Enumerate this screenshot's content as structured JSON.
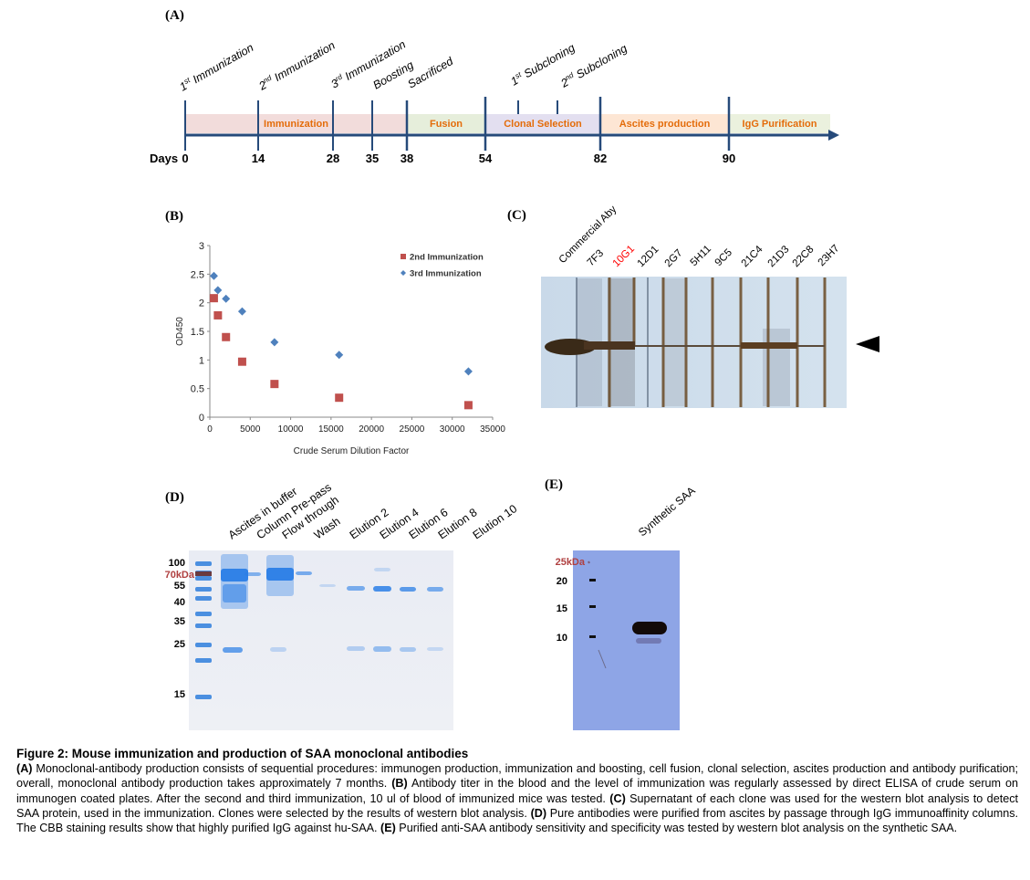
{
  "panels": {
    "a": "(A)",
    "b": "(B)",
    "c": "(C)",
    "d": "(D)",
    "e": "(E)"
  },
  "timeline": {
    "days_label": "Days",
    "days": [
      "0",
      "14",
      "28",
      "35",
      "38",
      "54",
      "82",
      "90"
    ],
    "events": [
      {
        "num": "1",
        "sup": "st",
        "text": " Immunization"
      },
      {
        "num": "2",
        "sup": "nd",
        "text": " Immunization"
      },
      {
        "num": "3",
        "sup": "rd",
        "text": " Immunization"
      },
      {
        "num": "",
        "sup": "",
        "text": "Boosting"
      },
      {
        "num": "",
        "sup": "",
        "text": "Sacrificed"
      },
      {
        "num": "1",
        "sup": "st",
        "text": " Subcloning"
      },
      {
        "num": "2",
        "sup": "nd",
        "text": " Subcloning"
      }
    ],
    "phases": [
      "Immunization",
      "Fusion",
      "Clonal Selection",
      "Ascites production",
      "IgG Purification"
    ],
    "phase_colors": [
      "#f2dcdb",
      "#e6eedb",
      "#e3dff0",
      "#fde6d4",
      "#ebf1de"
    ],
    "phase_text_color": "#e46c0a",
    "axis_color": "#264a7a"
  },
  "chart_data": {
    "type": "scatter",
    "xlabel": "Crude Serum Dilution Factor",
    "ylabel": "OD450",
    "xlim": [
      0,
      35000
    ],
    "ylim": [
      0,
      3
    ],
    "xticks": [
      "0",
      "5000",
      "10000",
      "15000",
      "20000",
      "25000",
      "30000",
      "35000"
    ],
    "yticks": [
      "0",
      "0.5",
      "1",
      "1.5",
      "2",
      "2.5",
      "3"
    ],
    "legend_position": "top-right",
    "series": [
      {
        "name": "2nd Immunization",
        "marker": "square",
        "color": "#c0504d",
        "x": [
          500,
          1000,
          2000,
          4000,
          8000,
          16000,
          32000
        ],
        "y": [
          2.08,
          1.78,
          1.4,
          0.97,
          0.58,
          0.34,
          0.21
        ]
      },
      {
        "name": "3rd Immunization",
        "marker": "diamond",
        "color": "#4f81bd",
        "x": [
          500,
          1000,
          2000,
          4000,
          8000,
          16000,
          32000
        ],
        "y": [
          2.47,
          2.22,
          2.07,
          1.85,
          1.31,
          1.09,
          0.8
        ]
      }
    ]
  },
  "blot_c": {
    "lanes": [
      "Commercial Aby",
      "7F3",
      "10G1",
      "12D1",
      "2G7",
      "5H11",
      "9C5",
      "21C4",
      "21D3",
      "22C8",
      "23H7"
    ],
    "highlight_color": "#ff0000"
  },
  "gel_d": {
    "lanes": [
      "Ascites  in buffer",
      "Column Pre-pass",
      "Flow through",
      "Wash",
      "Elution 2",
      "Elution 4",
      "Elution 6",
      "Elution 8",
      "Elution 10"
    ],
    "markers": [
      "100",
      "70kDa",
      "55",
      "40",
      "35",
      "25",
      "15"
    ]
  },
  "blot_e": {
    "lane": "Synthetic SAA",
    "markers": [
      "25kDa",
      "20",
      "15",
      "10"
    ]
  },
  "caption": {
    "title": "Figure 2: Mouse immunization and production of SAA monoclonal antibodies",
    "a_label": "(A)",
    "a_text": " Monoclonal-antibody production consists of sequential procedures: immunogen production, immunization and boosting, cell fusion, clonal selection, ascites production and antibody purification; overall, monoclonal antibody production takes approximately 7 months. ",
    "b_label": "(B)",
    "b_text": " Antibody titer in the blood and the level of immunization was regularly assessed by direct ELISA of crude serum on immunogen coated plates. After the second and third immunization, 10 ul of blood of immunized mice was tested. ",
    "c_label": "(C)",
    "c_text": " Supernatant of each clone was used for the western blot analysis to detect SAA protein, used in the immunization. Clones were selected by the results of western blot analysis. ",
    "d_label": "(D)",
    "d_text": " Pure antibodies were purified from ascites by passage through IgG immunoaffinity columns. The CBB staining results show that highly purified IgG against hu-SAA. ",
    "e_label": "(E)",
    "e_text": " Purified anti-SAA antibody sensitivity and specificity was tested by western blot analysis on the synthetic SAA."
  }
}
